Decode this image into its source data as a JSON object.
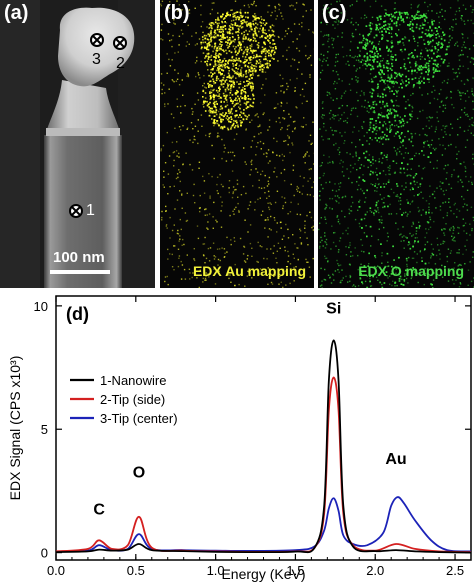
{
  "panels": {
    "a": {
      "letter": "(a)",
      "points": [
        "1",
        "2",
        "3"
      ],
      "scale_bar": "100 nm"
    },
    "b": {
      "letter": "(b)",
      "label": "EDX Au mapping",
      "label_color": "#f2f23a",
      "map_color": "#ffff30"
    },
    "c": {
      "letter": "(c)",
      "label": "EDX O mapping",
      "label_color": "#4ddb4d",
      "map_color": "#3ee03e"
    },
    "d": {
      "letter": "(d)"
    }
  },
  "chart_data": {
    "type": "line",
    "xlabel": "Energy (KeV)",
    "ylabel": "EDX Signal (CPS x10³)",
    "xlim": [
      0.0,
      2.6
    ],
    "ylim": [
      -0.3,
      10.4
    ],
    "xticks": [
      "0.0",
      "0.5",
      "1.0",
      "1.5",
      "2.0",
      "2.5"
    ],
    "xtick_values": [
      0.0,
      0.5,
      1.0,
      1.5,
      2.0,
      2.5
    ],
    "yticks": [
      "0",
      "5",
      "10"
    ],
    "ytick_values": [
      0,
      5,
      10
    ],
    "legend_position": "upper-left",
    "annotations": [
      {
        "text": "C",
        "x": 0.27,
        "y": 1.55
      },
      {
        "text": "O",
        "x": 0.52,
        "y": 3.05
      },
      {
        "text": "Si",
        "x": 1.74,
        "y": 9.7
      },
      {
        "text": "Au",
        "x": 2.13,
        "y": 3.6
      }
    ],
    "series": [
      {
        "name": "1-Nanowire",
        "color": "#000000",
        "x": [
          0.0,
          0.2,
          0.27,
          0.35,
          0.45,
          0.52,
          0.6,
          0.8,
          1.0,
          1.2,
          1.5,
          1.62,
          1.68,
          1.71,
          1.74,
          1.77,
          1.8,
          1.86,
          2.0,
          2.13,
          2.25,
          2.4,
          2.6
        ],
        "y": [
          0.02,
          0.05,
          0.12,
          0.08,
          0.12,
          0.35,
          0.1,
          0.06,
          0.03,
          0.02,
          0.04,
          0.2,
          1.9,
          7.0,
          8.6,
          7.0,
          1.9,
          0.25,
          0.06,
          0.1,
          0.05,
          0.02,
          0.0
        ]
      },
      {
        "name": "2-Tip (side)",
        "color": "#d42020",
        "x": [
          0.0,
          0.2,
          0.27,
          0.35,
          0.45,
          0.52,
          0.6,
          0.8,
          1.0,
          1.2,
          1.5,
          1.62,
          1.68,
          1.71,
          1.74,
          1.77,
          1.8,
          1.86,
          2.0,
          2.13,
          2.25,
          2.4,
          2.6
        ],
        "y": [
          0.05,
          0.15,
          0.5,
          0.15,
          0.3,
          1.45,
          0.2,
          0.08,
          0.05,
          0.03,
          0.05,
          0.2,
          1.6,
          5.8,
          7.1,
          5.8,
          1.6,
          0.3,
          0.08,
          0.35,
          0.15,
          0.05,
          0.02
        ]
      },
      {
        "name": "3-Tip (center)",
        "color": "#1c23b8",
        "x": [
          0.0,
          0.2,
          0.27,
          0.35,
          0.45,
          0.52,
          0.6,
          0.8,
          1.0,
          1.2,
          1.5,
          1.62,
          1.68,
          1.71,
          1.74,
          1.77,
          1.8,
          1.86,
          1.95,
          2.05,
          2.1,
          2.14,
          2.18,
          2.25,
          2.35,
          2.45,
          2.6
        ],
        "y": [
          0.05,
          0.08,
          0.3,
          0.1,
          0.15,
          0.75,
          0.15,
          0.1,
          0.08,
          0.07,
          0.1,
          0.25,
          0.9,
          1.8,
          2.2,
          1.7,
          0.7,
          0.35,
          0.3,
          0.8,
          1.9,
          2.25,
          2.0,
          1.3,
          0.5,
          0.1,
          0.05
        ]
      }
    ]
  }
}
